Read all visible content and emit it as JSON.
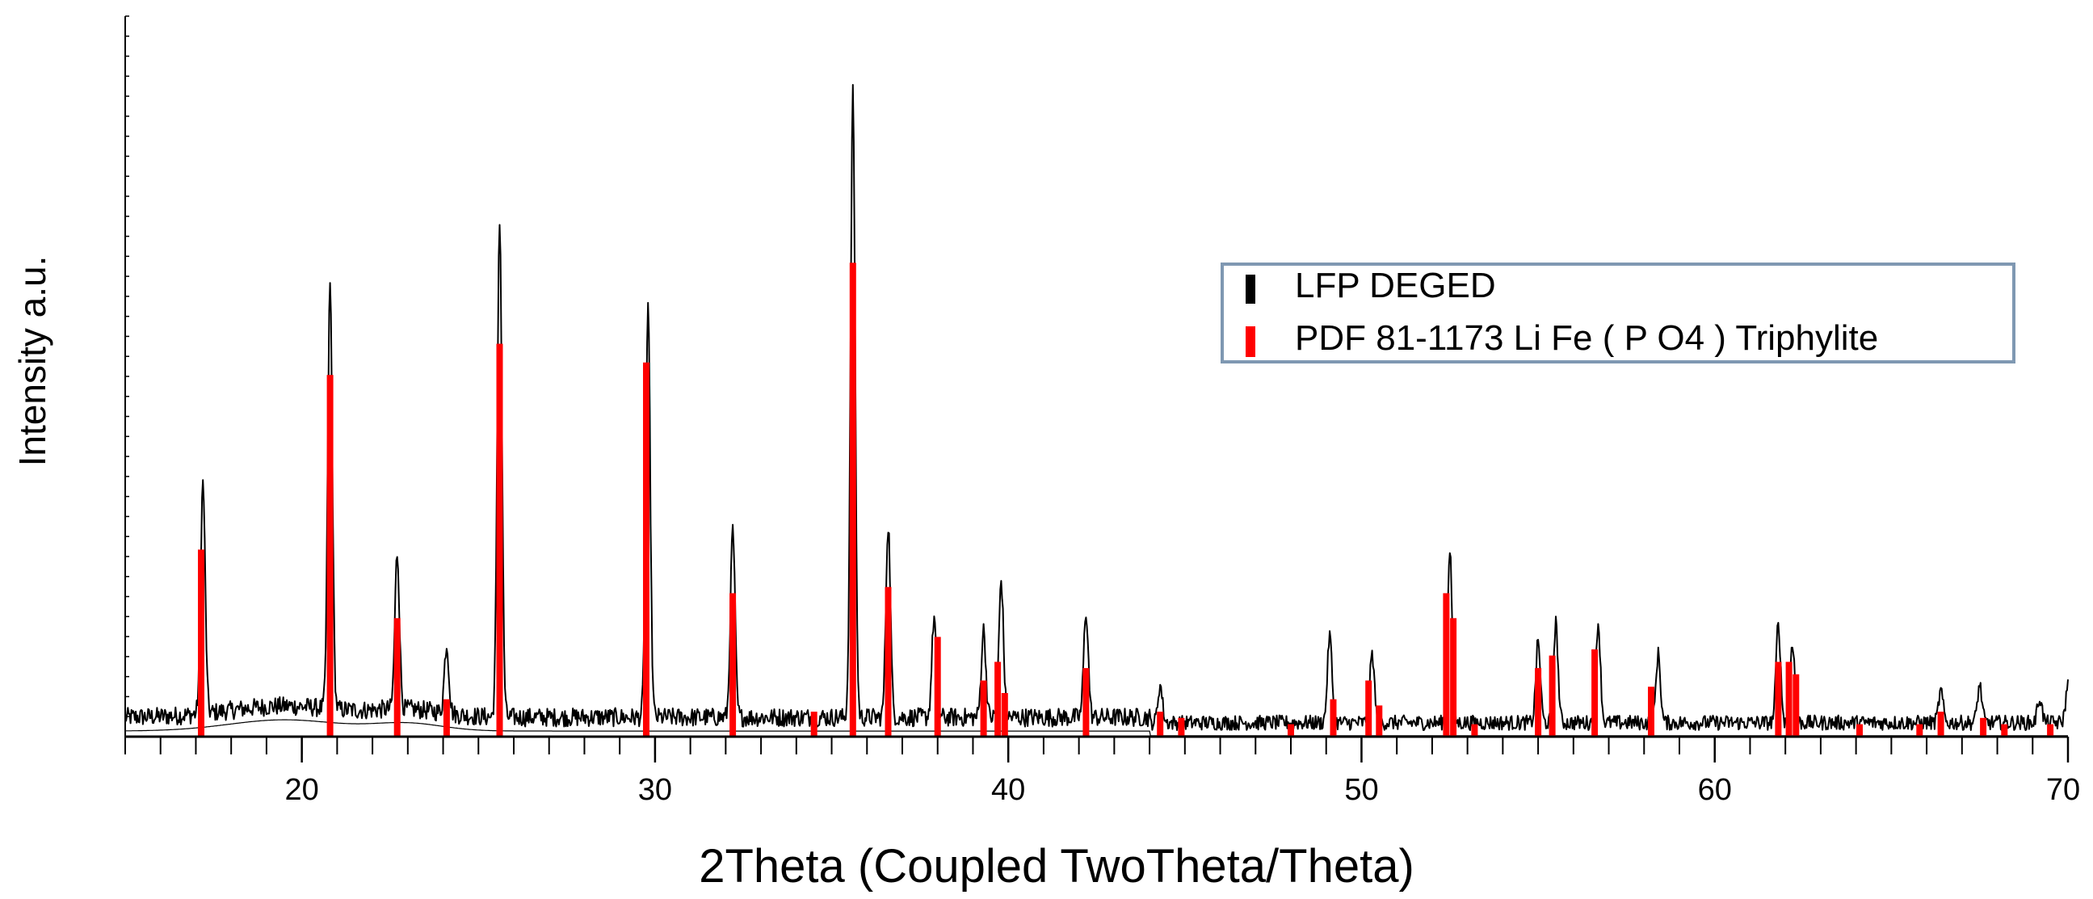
{
  "chart_data": {
    "type": "line",
    "title": "",
    "xlabel": "2Theta (Coupled TwoTheta/Theta)",
    "ylabel": "Intensity a.u.",
    "xlim": [
      15,
      70
    ],
    "ylim": [
      0,
      100
    ],
    "x_ticks": [
      20,
      30,
      40,
      50,
      60,
      70
    ],
    "x_tick_labels": [
      "20",
      "30",
      "40",
      "50",
      "60",
      "70"
    ],
    "y_tick_labels_shown": false,
    "grid": false,
    "legend_position": "top-right",
    "colors": {
      "measured": "#000000",
      "reference": "#ff0000",
      "legend_border": "#7f98b2"
    },
    "series": [
      {
        "name": "LFP DEGED",
        "kind": "measured-pattern",
        "baseline": 2.5,
        "noise_amplitude": 3,
        "peaks": [
          {
            "x": 17.2,
            "y": 37
          },
          {
            "x": 20.8,
            "y": 68
          },
          {
            "x": 22.7,
            "y": 25
          },
          {
            "x": 24.1,
            "y": 11
          },
          {
            "x": 25.6,
            "y": 80
          },
          {
            "x": 29.8,
            "y": 65
          },
          {
            "x": 32.2,
            "y": 30
          },
          {
            "x": 35.6,
            "y": 100
          },
          {
            "x": 36.6,
            "y": 31
          },
          {
            "x": 37.9,
            "y": 16
          },
          {
            "x": 39.3,
            "y": 14
          },
          {
            "x": 39.8,
            "y": 22
          },
          {
            "x": 42.2,
            "y": 17
          },
          {
            "x": 44.3,
            "y": 6
          },
          {
            "x": 49.1,
            "y": 14
          },
          {
            "x": 50.3,
            "y": 11
          },
          {
            "x": 52.5,
            "y": 28
          },
          {
            "x": 55.0,
            "y": 13
          },
          {
            "x": 55.5,
            "y": 16
          },
          {
            "x": 56.7,
            "y": 16
          },
          {
            "x": 58.4,
            "y": 11
          },
          {
            "x": 61.8,
            "y": 16
          },
          {
            "x": 62.2,
            "y": 13
          },
          {
            "x": 66.4,
            "y": 5
          },
          {
            "x": 67.5,
            "y": 6
          },
          {
            "x": 69.2,
            "y": 4
          },
          {
            "x": 70.0,
            "y": 6
          }
        ]
      },
      {
        "name": "PDF 81-1173 Li Fe ( P O4 ) Triphylite",
        "kind": "reference-sticks",
        "sticks": [
          {
            "x": 17.15,
            "y": 30
          },
          {
            "x": 20.8,
            "y": 58
          },
          {
            "x": 22.7,
            "y": 19
          },
          {
            "x": 24.1,
            "y": 6
          },
          {
            "x": 25.6,
            "y": 63
          },
          {
            "x": 29.75,
            "y": 60
          },
          {
            "x": 32.2,
            "y": 23
          },
          {
            "x": 34.5,
            "y": 4
          },
          {
            "x": 35.6,
            "y": 76
          },
          {
            "x": 36.6,
            "y": 24
          },
          {
            "x": 38.0,
            "y": 16
          },
          {
            "x": 39.3,
            "y": 9
          },
          {
            "x": 39.7,
            "y": 12
          },
          {
            "x": 39.9,
            "y": 7
          },
          {
            "x": 42.2,
            "y": 11
          },
          {
            "x": 44.3,
            "y": 4
          },
          {
            "x": 44.9,
            "y": 3
          },
          {
            "x": 48.0,
            "y": 2
          },
          {
            "x": 49.2,
            "y": 6
          },
          {
            "x": 50.2,
            "y": 9
          },
          {
            "x": 50.5,
            "y": 5
          },
          {
            "x": 52.4,
            "y": 23
          },
          {
            "x": 52.6,
            "y": 19
          },
          {
            "x": 53.2,
            "y": 2
          },
          {
            "x": 55.0,
            "y": 11
          },
          {
            "x": 55.4,
            "y": 13
          },
          {
            "x": 56.6,
            "y": 14
          },
          {
            "x": 58.2,
            "y": 8
          },
          {
            "x": 61.8,
            "y": 12
          },
          {
            "x": 62.1,
            "y": 12
          },
          {
            "x": 62.3,
            "y": 10
          },
          {
            "x": 64.1,
            "y": 2
          },
          {
            "x": 65.8,
            "y": 2
          },
          {
            "x": 66.4,
            "y": 4
          },
          {
            "x": 67.6,
            "y": 3
          },
          {
            "x": 68.2,
            "y": 2
          },
          {
            "x": 69.5,
            "y": 2
          }
        ]
      }
    ]
  }
}
